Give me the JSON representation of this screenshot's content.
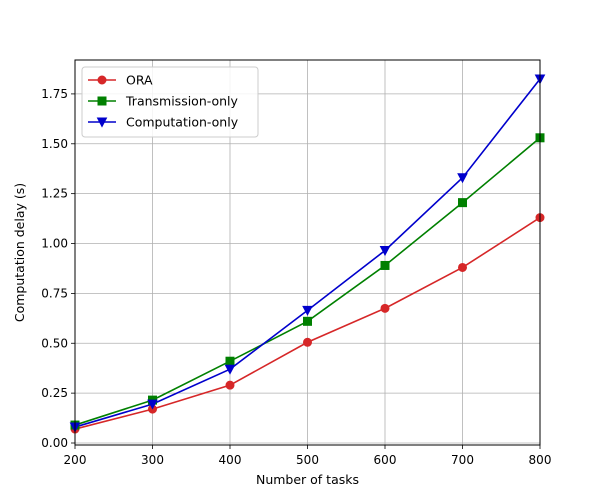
{
  "chart_data": {
    "type": "line",
    "xlabel": "Number of tasks",
    "ylabel": "Computation delay (s)",
    "xlim": [
      200,
      800
    ],
    "ylim": [
      -0.01,
      1.92
    ],
    "xticks": [
      200,
      300,
      400,
      500,
      600,
      700,
      800
    ],
    "yticks": [
      0.0,
      0.25,
      0.5,
      0.75,
      1.0,
      1.25,
      1.5,
      1.75
    ],
    "xtick_labels": [
      "200",
      "300",
      "400",
      "500",
      "600",
      "700",
      "800"
    ],
    "ytick_labels": [
      "0.00",
      "0.25",
      "0.50",
      "0.75",
      "1.00",
      "1.25",
      "1.50",
      "1.75"
    ],
    "grid": true,
    "legend_position": "top-left",
    "x": [
      200,
      300,
      400,
      500,
      600,
      700,
      800
    ],
    "series": [
      {
        "name": "ORA",
        "values": [
          0.07,
          0.17,
          0.29,
          0.505,
          0.675,
          0.88,
          1.13
        ],
        "color": "#d62728",
        "marker": "circle"
      },
      {
        "name": "Transmission-only",
        "values": [
          0.09,
          0.215,
          0.41,
          0.61,
          0.89,
          1.205,
          1.53
        ],
        "color": "#008000",
        "marker": "square"
      },
      {
        "name": "Computation-only",
        "values": [
          0.08,
          0.195,
          0.37,
          0.665,
          0.965,
          1.33,
          1.825
        ],
        "color": "#0000cc",
        "marker": "triangle-down"
      }
    ]
  }
}
